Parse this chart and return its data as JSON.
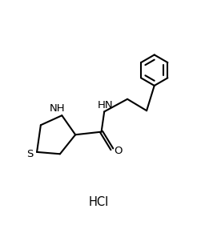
{
  "background_color": "#ffffff",
  "line_color": "#000000",
  "line_width": 1.5,
  "font_size": 9.5,
  "hcl_label": "HCl",
  "s_label": "S",
  "nh_label": "NH",
  "o_label": "O",
  "hn_label": "HN",
  "figsize": [
    2.46,
    2.86
  ],
  "dpi": 100,
  "xlim": [
    0,
    10
  ],
  "ylim": [
    0,
    11.5
  ]
}
